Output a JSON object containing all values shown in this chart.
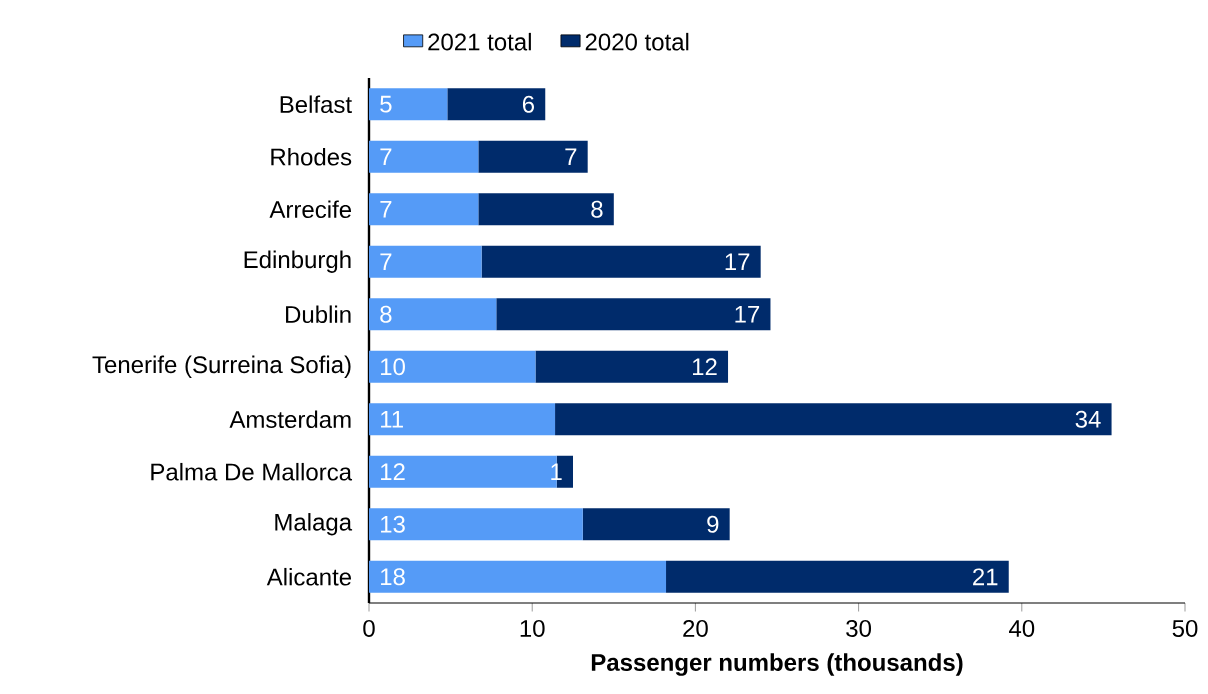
{
  "chart_data": {
    "type": "bar",
    "orientation": "horizontal",
    "stacked": true,
    "categories": [
      "Belfast",
      "Rhodes",
      "Arrecife",
      "Edinburgh",
      "Dublin",
      "Tenerife (Surreina Sofia)",
      "Amsterdam",
      "Palma De Mallorca",
      "Malaga",
      "Alicante"
    ],
    "series": [
      {
        "name": "2021 total",
        "color": "#559bf7",
        "values": [
          4.8,
          6.7,
          6.7,
          6.9,
          7.8,
          10.2,
          11.4,
          11.5,
          13.1,
          18.2
        ],
        "value_labels": [
          "5",
          "7",
          "7",
          "7",
          "8",
          "10",
          "11",
          "12",
          "13",
          "18"
        ]
      },
      {
        "name": "2020 total",
        "color": "#002b6b",
        "values": [
          6.0,
          6.7,
          8.3,
          17.1,
          16.8,
          11.8,
          34.1,
          1.0,
          9.0,
          21.0
        ],
        "value_labels": [
          "6",
          "7",
          "8",
          "17",
          "17",
          "12",
          "34",
          "1",
          "9",
          "21"
        ]
      }
    ],
    "xlim": [
      0,
      50
    ],
    "xticks": [
      0,
      10,
      20,
      30,
      40,
      50
    ],
    "xlabel": "Passenger numbers (thousands)",
    "legend": "top"
  }
}
